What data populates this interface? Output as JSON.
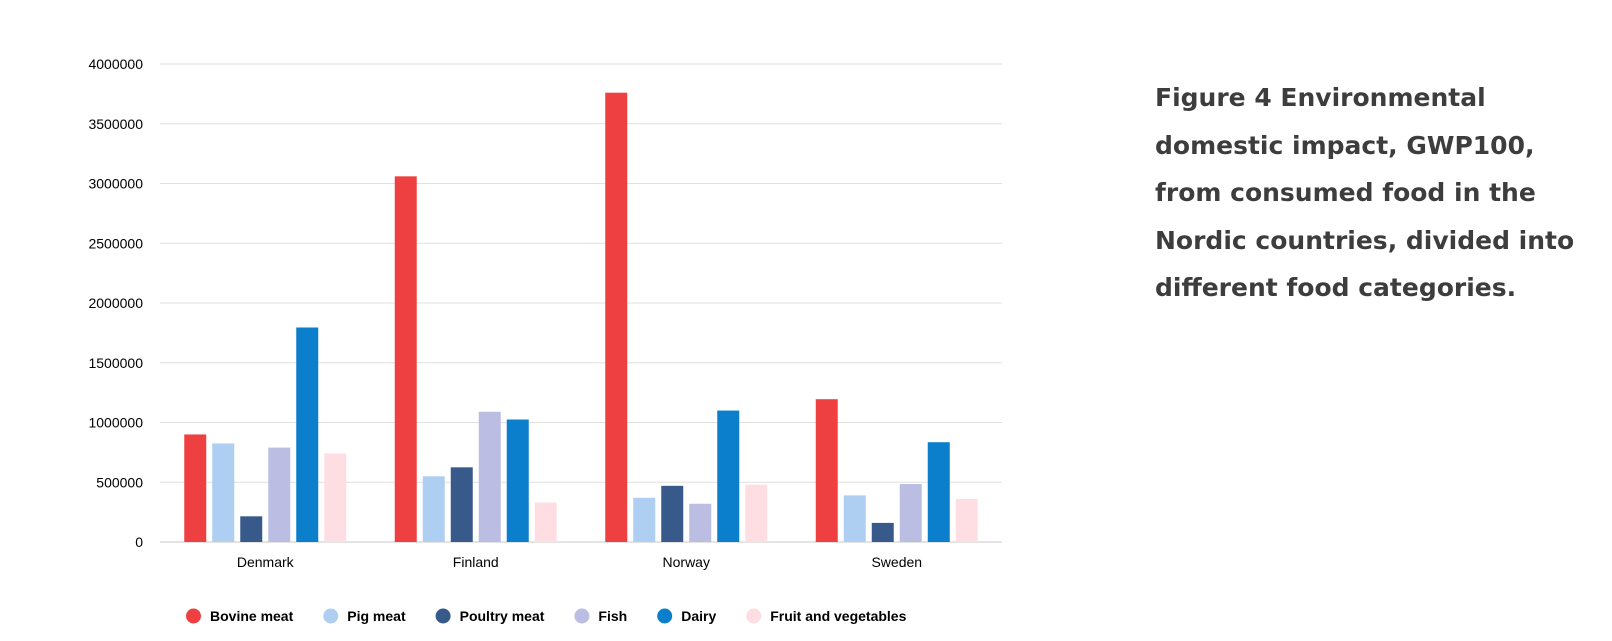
{
  "caption": "Figure 4 Environmental domestic impact, GWP100, from consumed food in the Nordic countries, divided into different food categories.",
  "chart_data": {
    "type": "bar",
    "categories": [
      "Denmark",
      "Finland",
      "Norway",
      "Sweden"
    ],
    "series": [
      {
        "name": "Bovine meat",
        "color": "#ee4040",
        "values": [
          900000,
          3060000,
          3760000,
          1195000
        ]
      },
      {
        "name": "Pig meat",
        "color": "#aecff2",
        "values": [
          825000,
          550000,
          370000,
          390000
        ]
      },
      {
        "name": "Poultry meat",
        "color": "#385a8b",
        "values": [
          215000,
          625000,
          470000,
          160000
        ]
      },
      {
        "name": "Fish",
        "color": "#bcbde3",
        "values": [
          790000,
          1090000,
          320000,
          485000
        ]
      },
      {
        "name": "Dairy",
        "color": "#0b7fcb",
        "values": [
          1795000,
          1025000,
          1100000,
          835000
        ]
      },
      {
        "name": "Fruit and vegetables",
        "color": "#fedde3",
        "values": [
          740000,
          330000,
          480000,
          360000
        ]
      }
    ],
    "yticks": [
      "0",
      "500000",
      "1000000",
      "1500000",
      "2000000",
      "2500000",
      "3000000",
      "3500000",
      "4000000"
    ],
    "ylim": [
      0,
      4000000
    ],
    "xlabel": "",
    "ylabel": "",
    "grid": true,
    "legend_position": "bottom"
  }
}
